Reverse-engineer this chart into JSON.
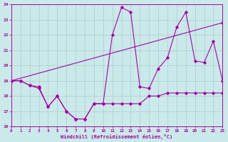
{
  "bg_color": "#caeaea",
  "grid_color": "#aacccc",
  "line_color": "#aa00aa",
  "xlabel": "Windchill (Refroidissement éolien,°C)",
  "xlim": [
    0,
    23
  ],
  "ylim": [
    16,
    24
  ],
  "xticks": [
    0,
    1,
    2,
    3,
    4,
    5,
    6,
    7,
    8,
    9,
    10,
    11,
    12,
    13,
    14,
    15,
    16,
    17,
    18,
    19,
    20,
    21,
    22,
    23
  ],
  "yticks": [
    16,
    17,
    18,
    19,
    20,
    21,
    22,
    23,
    24
  ],
  "series1_x": [
    0,
    1,
    2,
    3,
    4,
    5,
    6,
    7,
    8,
    9,
    10,
    11,
    12,
    13,
    14,
    15,
    16,
    17,
    18,
    19,
    20,
    21,
    22,
    23
  ],
  "series1_y": [
    19,
    19,
    18.7,
    18.5,
    17.3,
    18.0,
    17.0,
    16.5,
    16.5,
    17.5,
    17.5,
    22.0,
    23.8,
    23.5,
    18.6,
    18.5,
    19.8,
    20.5,
    22.5,
    23.5,
    20.3,
    20.2,
    21.6,
    19.0
  ],
  "series2_x": [
    0,
    1,
    2,
    3,
    4,
    5,
    6,
    7,
    8,
    9,
    10,
    11,
    12,
    13,
    14,
    15,
    16,
    17,
    18,
    19,
    20,
    21,
    22,
    23
  ],
  "series2_y": [
    19,
    19,
    18.7,
    18.6,
    17.3,
    18.0,
    17.0,
    16.5,
    16.5,
    17.5,
    17.5,
    17.5,
    17.5,
    17.5,
    17.5,
    18.0,
    18.0,
    18.2,
    18.2,
    18.2,
    18.2,
    18.2,
    18.2,
    18.2
  ],
  "series3_x": [
    0,
    23
  ],
  "series3_y": [
    19.0,
    22.8
  ]
}
